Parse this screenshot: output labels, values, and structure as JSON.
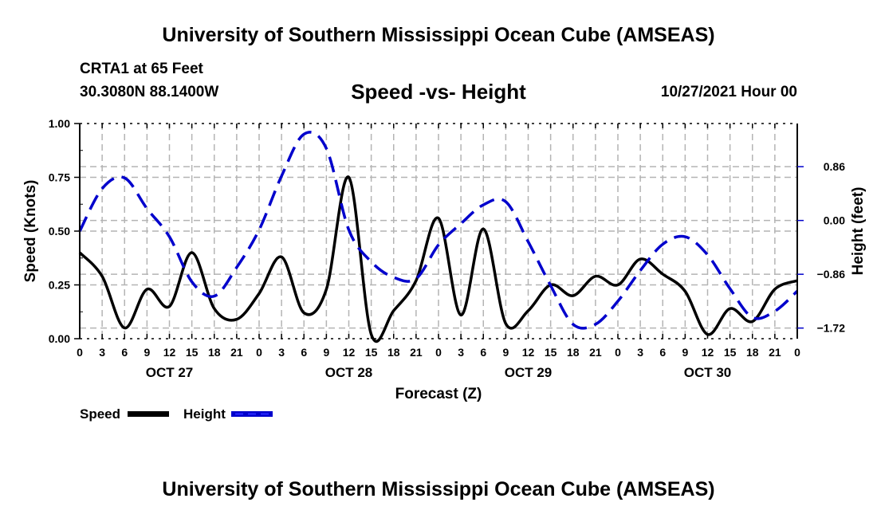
{
  "header": {
    "main_title": "University of Southern Mississippi Ocean Cube (AMSEAS)",
    "station": "CRTA1 at 65 Feet",
    "coords": "30.3080N  88.1400W",
    "subtitle": "Speed -vs- Height",
    "datetime": "10/27/2021 Hour 00"
  },
  "footer": {
    "bottom_title": "University of Southern Mississippi Ocean Cube (AMSEAS)"
  },
  "colors": {
    "speed": "#000000",
    "height": "#0000cc",
    "grid": "#b4b4b4"
  },
  "chart_data": {
    "type": "line",
    "title": "Speed -vs- Height",
    "xlabel": "Forecast (Z)",
    "ylabel": "Speed (Knots)",
    "y2label": "Height (feet)",
    "x_unit": "forecast hour",
    "xlim": [
      0,
      96
    ],
    "ylim": [
      0,
      1.0
    ],
    "y2lim": [
      -1.89,
      1.55
    ],
    "grid": true,
    "legend_position": "bottom-left",
    "x_ticks": [
      0,
      3,
      6,
      9,
      12,
      15,
      18,
      21,
      24,
      27,
      30,
      33,
      36,
      39,
      42,
      45,
      48,
      51,
      54,
      57,
      60,
      63,
      66,
      69,
      72,
      75,
      78,
      81,
      84,
      87,
      90,
      93,
      96
    ],
    "x_tick_labels": [
      "0",
      "3",
      "6",
      "9",
      "12",
      "15",
      "18",
      "21",
      "0",
      "3",
      "6",
      "9",
      "12",
      "15",
      "18",
      "21",
      "0",
      "3",
      "6",
      "9",
      "12",
      "15",
      "18",
      "21",
      "0",
      "3",
      "6",
      "9",
      "12",
      "15",
      "18",
      "21",
      "0"
    ],
    "day_labels": [
      {
        "hour": 12,
        "label": "OCT 27"
      },
      {
        "hour": 36,
        "label": "OCT 28"
      },
      {
        "hour": 60,
        "label": "OCT 29"
      },
      {
        "hour": 84,
        "label": "OCT 30"
      }
    ],
    "y_ticks": [
      0.0,
      0.25,
      0.5,
      0.75,
      1.0
    ],
    "y_tick_labels": [
      "0.00",
      "0.25",
      "0.50",
      "0.75",
      "1.00"
    ],
    "y2_ticks": [
      0.86,
      0.0,
      -0.86,
      -1.72
    ],
    "y2_tick_labels": [
      "0.86",
      "0.00",
      "−0.86",
      "−1.72"
    ],
    "x": [
      0,
      3,
      6,
      9,
      12,
      15,
      18,
      21,
      24,
      27,
      30,
      33,
      36,
      39,
      42,
      45,
      48,
      51,
      54,
      57,
      60,
      63,
      66,
      69,
      72,
      75,
      78,
      81,
      84,
      87,
      90,
      93,
      96
    ],
    "series": [
      {
        "name": "Speed",
        "axis": "left",
        "style": "solid",
        "values": [
          0.4,
          0.29,
          0.05,
          0.23,
          0.15,
          0.4,
          0.14,
          0.09,
          0.21,
          0.38,
          0.12,
          0.23,
          0.75,
          0.02,
          0.13,
          0.27,
          0.56,
          0.11,
          0.51,
          0.07,
          0.13,
          0.25,
          0.2,
          0.29,
          0.25,
          0.37,
          0.3,
          0.22,
          0.02,
          0.14,
          0.08,
          0.23,
          0.27
        ]
      },
      {
        "name": "Height",
        "axis": "right",
        "style": "dashed",
        "values": [
          -0.17,
          0.51,
          0.68,
          0.19,
          -0.26,
          -0.98,
          -1.21,
          -0.75,
          -0.15,
          0.71,
          1.38,
          1.15,
          -0.15,
          -0.66,
          -0.91,
          -0.93,
          -0.39,
          -0.05,
          0.25,
          0.3,
          -0.34,
          -1.04,
          -1.66,
          -1.66,
          -1.29,
          -0.8,
          -0.38,
          -0.26,
          -0.55,
          -1.09,
          -1.55,
          -1.45,
          -1.13
        ]
      }
    ]
  }
}
